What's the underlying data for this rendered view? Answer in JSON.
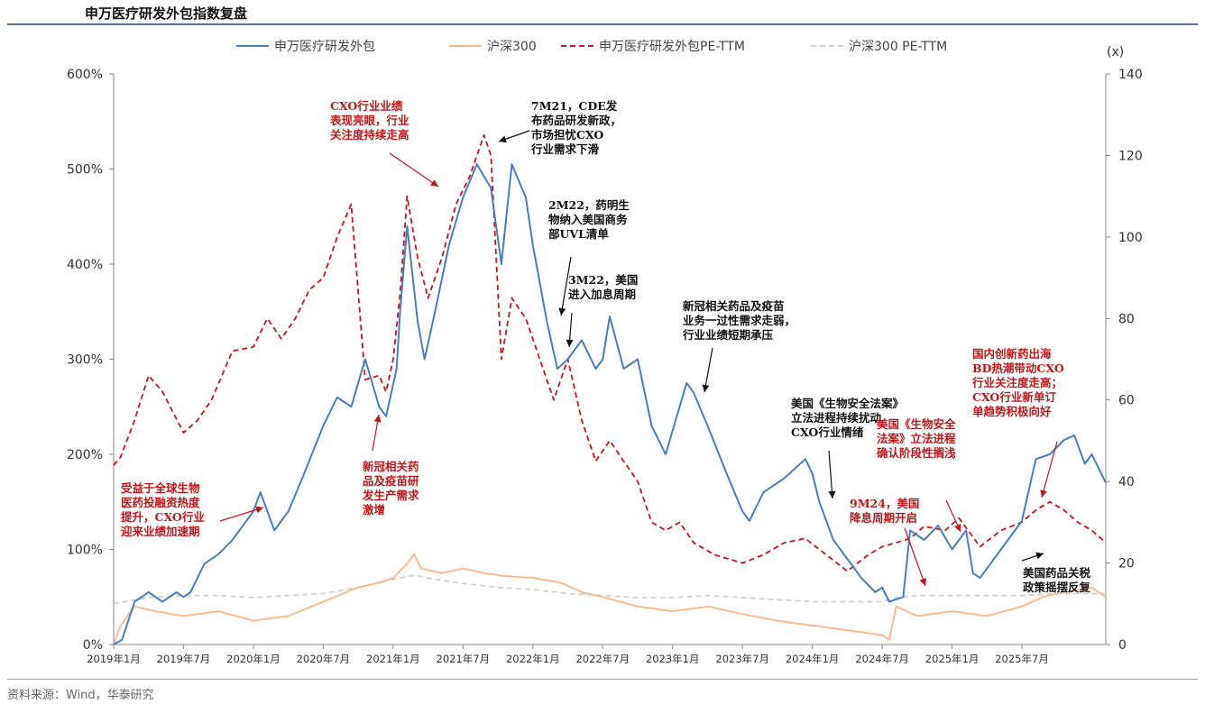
{
  "title": "申万医疗研发外包指数复盘",
  "source": "资料来源：Wind，华泰研究",
  "chart_data": {
    "type": "line",
    "y_left": {
      "ticks": [
        "0%",
        "100%",
        "200%",
        "300%",
        "400%",
        "500%",
        "600%"
      ],
      "range": [
        0,
        600
      ]
    },
    "y_right": {
      "unit": "(x)",
      "ticks": [
        "0",
        "20",
        "40",
        "60",
        "80",
        "100",
        "120",
        "140"
      ],
      "range": [
        0,
        140
      ]
    },
    "x_labels": [
      "2019年1月",
      "2019年7月",
      "2020年1月",
      "2020年7月",
      "2021年1月",
      "2021年7月",
      "2022年1月",
      "2022年7月",
      "2023年1月",
      "2023年7月",
      "2024年1月",
      "2024年7月",
      "2025年1月",
      "2025年7月"
    ],
    "x_range": [
      0,
      14.2
    ],
    "series": [
      {
        "name": "申万医疗研发外包",
        "axis": "left",
        "color": "#4a7ebb",
        "dash": "solid",
        "points": [
          [
            0,
            0
          ],
          [
            0.12,
            5
          ],
          [
            0.3,
            45
          ],
          [
            0.5,
            55
          ],
          [
            0.7,
            45
          ],
          [
            0.9,
            55
          ],
          [
            1,
            50
          ],
          [
            1.1,
            55
          ],
          [
            1.3,
            85
          ],
          [
            1.5,
            95
          ],
          [
            1.7,
            110
          ],
          [
            2,
            140
          ],
          [
            2.1,
            160
          ],
          [
            2.3,
            120
          ],
          [
            2.5,
            140
          ],
          [
            2.7,
            175
          ],
          [
            3,
            230
          ],
          [
            3.2,
            260
          ],
          [
            3.4,
            250
          ],
          [
            3.6,
            300
          ],
          [
            3.8,
            250
          ],
          [
            3.9,
            240
          ],
          [
            4.05,
            290
          ],
          [
            4.1,
            350
          ],
          [
            4.2,
            440
          ],
          [
            4.35,
            340
          ],
          [
            4.45,
            300
          ],
          [
            4.6,
            350
          ],
          [
            4.8,
            420
          ],
          [
            5,
            470
          ],
          [
            5.2,
            505
          ],
          [
            5.4,
            480
          ],
          [
            5.55,
            400
          ],
          [
            5.7,
            505
          ],
          [
            5.9,
            470
          ],
          [
            6,
            420
          ],
          [
            6.2,
            340
          ],
          [
            6.35,
            290
          ],
          [
            6.5,
            300
          ],
          [
            6.7,
            320
          ],
          [
            6.9,
            290
          ],
          [
            7,
            300
          ],
          [
            7.1,
            345
          ],
          [
            7.3,
            290
          ],
          [
            7.5,
            300
          ],
          [
            7.7,
            230
          ],
          [
            7.9,
            200
          ],
          [
            8.1,
            250
          ],
          [
            8.2,
            275
          ],
          [
            8.3,
            265
          ],
          [
            8.5,
            230
          ],
          [
            8.8,
            175
          ],
          [
            9,
            140
          ],
          [
            9.1,
            130
          ],
          [
            9.3,
            160
          ],
          [
            9.6,
            175
          ],
          [
            9.9,
            195
          ],
          [
            10,
            180
          ],
          [
            10.1,
            150
          ],
          [
            10.3,
            110
          ],
          [
            10.5,
            90
          ],
          [
            10.7,
            70
          ],
          [
            10.9,
            55
          ],
          [
            11,
            60
          ],
          [
            11.1,
            45
          ],
          [
            11.3,
            50
          ],
          [
            11.4,
            120
          ],
          [
            11.6,
            110
          ],
          [
            11.8,
            125
          ],
          [
            12,
            100
          ],
          [
            12.2,
            120
          ],
          [
            12.3,
            75
          ],
          [
            12.4,
            70
          ],
          [
            12.6,
            90
          ],
          [
            12.8,
            110
          ],
          [
            13,
            130
          ],
          [
            13.2,
            195
          ],
          [
            13.4,
            200
          ],
          [
            13.6,
            215
          ],
          [
            13.75,
            220
          ],
          [
            13.9,
            190
          ],
          [
            14,
            200
          ],
          [
            14.2,
            170
          ]
        ]
      },
      {
        "name": "沪深300",
        "axis": "left",
        "color": "#f5b88a",
        "dash": "solid",
        "points": [
          [
            0,
            0
          ],
          [
            0.1,
            20
          ],
          [
            0.3,
            40
          ],
          [
            0.6,
            35
          ],
          [
            1,
            30
          ],
          [
            1.5,
            35
          ],
          [
            2,
            25
          ],
          [
            2.5,
            30
          ],
          [
            3,
            45
          ],
          [
            3.5,
            60
          ],
          [
            3.8,
            65
          ],
          [
            4,
            70
          ],
          [
            4.2,
            85
          ],
          [
            4.3,
            95
          ],
          [
            4.4,
            80
          ],
          [
            4.7,
            75
          ],
          [
            5,
            80
          ],
          [
            5.3,
            75
          ],
          [
            5.6,
            72
          ],
          [
            6,
            70
          ],
          [
            6.4,
            65
          ],
          [
            6.7,
            55
          ],
          [
            7,
            50
          ],
          [
            7.5,
            40
          ],
          [
            8,
            35
          ],
          [
            8.5,
            40
          ],
          [
            9,
            32
          ],
          [
            9.5,
            25
          ],
          [
            10,
            20
          ],
          [
            10.5,
            15
          ],
          [
            11,
            10
          ],
          [
            11.1,
            5
          ],
          [
            11.2,
            40
          ],
          [
            11.5,
            30
          ],
          [
            12,
            35
          ],
          [
            12.5,
            30
          ],
          [
            13,
            40
          ],
          [
            13.3,
            50
          ],
          [
            13.6,
            55
          ],
          [
            14,
            60
          ],
          [
            14.2,
            50
          ]
        ]
      },
      {
        "name": "申万医疗研发外包PE-TTM",
        "axis": "right",
        "color": "#c0161b",
        "dash": "6,4",
        "points": [
          [
            0,
            44
          ],
          [
            0.1,
            46
          ],
          [
            0.3,
            55
          ],
          [
            0.5,
            66
          ],
          [
            0.7,
            62
          ],
          [
            0.85,
            57
          ],
          [
            1,
            52
          ],
          [
            1.2,
            55
          ],
          [
            1.4,
            60
          ],
          [
            1.7,
            72
          ],
          [
            2,
            73
          ],
          [
            2.2,
            80
          ],
          [
            2.4,
            75
          ],
          [
            2.6,
            80
          ],
          [
            2.8,
            87
          ],
          [
            3,
            90
          ],
          [
            3.2,
            100
          ],
          [
            3.4,
            108
          ],
          [
            3.6,
            65
          ],
          [
            3.8,
            66
          ],
          [
            3.9,
            62
          ],
          [
            4,
            70
          ],
          [
            4.1,
            86
          ],
          [
            4.2,
            110
          ],
          [
            4.35,
            95
          ],
          [
            4.5,
            85
          ],
          [
            4.7,
            95
          ],
          [
            4.9,
            108
          ],
          [
            5.1,
            115
          ],
          [
            5.3,
            125
          ],
          [
            5.4,
            120
          ],
          [
            5.55,
            70
          ],
          [
            5.7,
            85
          ],
          [
            5.9,
            80
          ],
          [
            6.1,
            70
          ],
          [
            6.3,
            60
          ],
          [
            6.5,
            70
          ],
          [
            6.7,
            55
          ],
          [
            6.9,
            45
          ],
          [
            7.1,
            50
          ],
          [
            7.3,
            45
          ],
          [
            7.5,
            40
          ],
          [
            7.7,
            30
          ],
          [
            7.9,
            28
          ],
          [
            8.1,
            30
          ],
          [
            8.3,
            25
          ],
          [
            8.6,
            22
          ],
          [
            9,
            20
          ],
          [
            9.3,
            22
          ],
          [
            9.6,
            25
          ],
          [
            9.9,
            26
          ],
          [
            10.2,
            22
          ],
          [
            10.5,
            18
          ],
          [
            10.8,
            22
          ],
          [
            11,
            24
          ],
          [
            11.2,
            25
          ],
          [
            11.4,
            26
          ],
          [
            11.6,
            29
          ],
          [
            11.9,
            28
          ],
          [
            12.1,
            31
          ],
          [
            12.4,
            24
          ],
          [
            12.7,
            28
          ],
          [
            13,
            30
          ],
          [
            13.2,
            33
          ],
          [
            13.4,
            35
          ],
          [
            13.6,
            33
          ],
          [
            13.8,
            30
          ],
          [
            14,
            28
          ],
          [
            14.2,
            25
          ]
        ]
      },
      {
        "name": "沪深300 PE-TTM",
        "axis": "right",
        "color": "#cfcfcf",
        "dash": "6,4",
        "points": [
          [
            0,
            10
          ],
          [
            0.5,
            11.5
          ],
          [
            1,
            12
          ],
          [
            1.5,
            12
          ],
          [
            2,
            11.5
          ],
          [
            2.5,
            12
          ],
          [
            3,
            12.5
          ],
          [
            3.5,
            14
          ],
          [
            4,
            16
          ],
          [
            4.3,
            17
          ],
          [
            4.6,
            16
          ],
          [
            5,
            15
          ],
          [
            5.5,
            14
          ],
          [
            6,
            13.5
          ],
          [
            6.5,
            12.5
          ],
          [
            7,
            12
          ],
          [
            7.5,
            11.5
          ],
          [
            8,
            11.5
          ],
          [
            8.5,
            12
          ],
          [
            9,
            11.5
          ],
          [
            9.5,
            11
          ],
          [
            10,
            10.5
          ],
          [
            10.5,
            10.5
          ],
          [
            11,
            10.5
          ],
          [
            11.2,
            11.5
          ],
          [
            11.5,
            12
          ],
          [
            12,
            12
          ],
          [
            12.5,
            12
          ],
          [
            13,
            12
          ],
          [
            13.5,
            12.5
          ],
          [
            14.2,
            12.5
          ]
        ]
      }
    ],
    "annotations": [
      {
        "color": "red",
        "lines": [
          "受益于全球生物",
          "医药投融资热度",
          "提升，CXO行业",
          "迎来业绩加速期"
        ]
      },
      {
        "color": "red",
        "lines": [
          "新冠相关药",
          "品及疫苗研",
          "发生产需求",
          "激增"
        ]
      },
      {
        "color": "red",
        "lines": [
          "CXO行业业绩",
          "表现亮眼，行业",
          "关注度持续走高"
        ]
      },
      {
        "color": "black",
        "lines": [
          "7M21，CDE发",
          "布药品研发新政，",
          "市场担忧CXO",
          "行业需求下滑"
        ]
      },
      {
        "color": "black",
        "lines": [
          "2M22，药明生",
          "物纳入美国商务",
          "部UVL清单"
        ]
      },
      {
        "color": "black",
        "lines": [
          "3M22，美国",
          "进入加息周期"
        ]
      },
      {
        "color": "black",
        "lines": [
          "新冠相关药品及疫苗",
          "业务一过性需求走弱，",
          "行业业绩短期承压"
        ]
      },
      {
        "color": "black",
        "lines": [
          "美国《生物安全法案》",
          "立法进程持续扰动",
          "CXO行业情绪"
        ]
      },
      {
        "color": "red",
        "lines": [
          "美国《生物安全",
          "法案》立法进程",
          "确认阶段性搁浅"
        ]
      },
      {
        "color": "red",
        "lines": [
          "9M24，美国",
          "降息周期开启"
        ]
      },
      {
        "color": "red",
        "lines": [
          "国内创新药出海",
          "BD热潮带动CXO",
          "行业关注度走高；",
          "CXO行业新单订",
          "单趋势积极向好"
        ]
      },
      {
        "color": "black",
        "lines": [
          "美国药品关税",
          "政策摇摆反复"
        ]
      }
    ]
  }
}
